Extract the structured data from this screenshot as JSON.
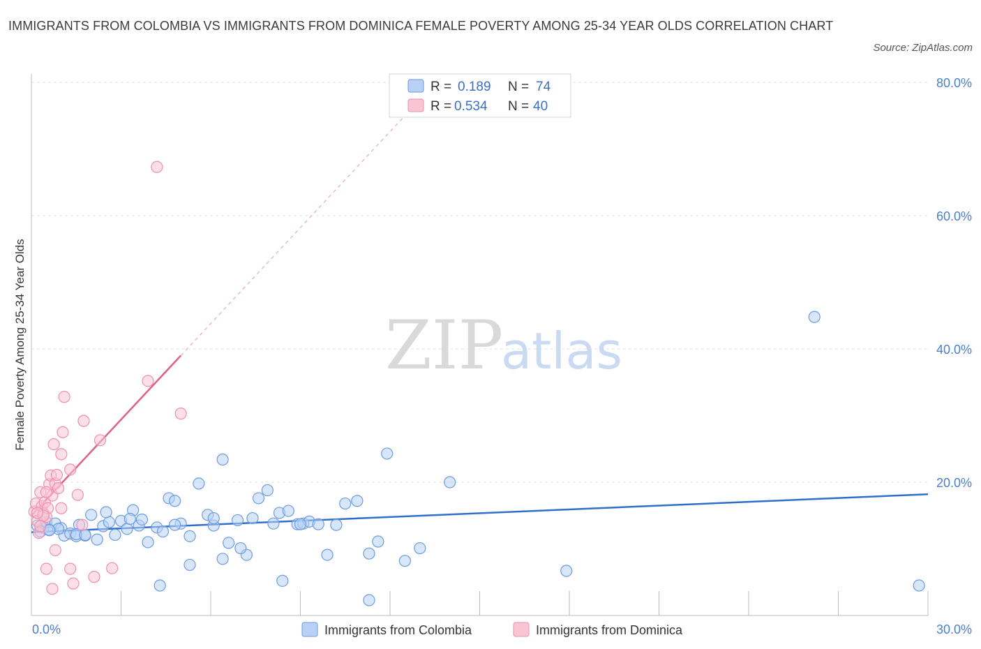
{
  "title": "IMMIGRANTS FROM COLOMBIA VS IMMIGRANTS FROM DOMINICA FEMALE POVERTY AMONG 25-34 YEAR OLDS CORRELATION CHART",
  "source": "Source: ZipAtlas.com",
  "watermark": {
    "zip": "ZIP",
    "atlas": "atlas"
  },
  "colors": {
    "colombia_fill": "#b8d1f5",
    "colombia_stroke": "#6b9be0",
    "colombia_line": "#2f6fcc",
    "dominica_fill": "#f9c4d4",
    "dominica_stroke": "#ee8fb0",
    "dominica_line": "#e0608c",
    "grid": "#e3e3e3",
    "tick": "#4a7fd0"
  },
  "legend": {
    "rows": [
      {
        "r_label": "R =",
        "r_value": "0.189",
        "n_label": "N =",
        "n_value": "74"
      },
      {
        "r_label": "R =",
        "r_value": "0.534",
        "n_label": "N =",
        "n_value": "40"
      }
    ]
  },
  "chart_data": {
    "type": "scatter",
    "xlabel": "",
    "ylabel": "Female Poverty Among 25-34 Year Olds",
    "xlim": [
      0,
      30
    ],
    "ylim": [
      0,
      80
    ],
    "x_tick_labels": [
      "0.0%",
      "30.0%"
    ],
    "y_ticks": [
      20,
      40,
      60,
      80
    ],
    "y_tick_labels": [
      "20.0%",
      "40.0%",
      "60.0%",
      "80.0%"
    ],
    "grid": true,
    "series": [
      {
        "name": "Immigrants from Colombia",
        "trend": {
          "x0": 0,
          "y0": 12.5,
          "x1": 30,
          "y1": 18.2,
          "style": "solid"
        },
        "points": [
          [
            0.2,
            13.5
          ],
          [
            0.3,
            12.6
          ],
          [
            0.4,
            13.2
          ],
          [
            0.5,
            14.0
          ],
          [
            0.6,
            12.9
          ],
          [
            0.8,
            13.8
          ],
          [
            1.0,
            13.1
          ],
          [
            1.1,
            12.0
          ],
          [
            1.3,
            12.3
          ],
          [
            1.5,
            11.9
          ],
          [
            1.6,
            13.6
          ],
          [
            1.8,
            12.0
          ],
          [
            2.0,
            15.1
          ],
          [
            2.2,
            11.4
          ],
          [
            2.4,
            13.4
          ],
          [
            2.6,
            14.0
          ],
          [
            2.8,
            12.1
          ],
          [
            3.0,
            14.2
          ],
          [
            3.2,
            13.0
          ],
          [
            3.4,
            15.8
          ],
          [
            3.6,
            13.5
          ],
          [
            3.7,
            14.4
          ],
          [
            3.9,
            11.0
          ],
          [
            4.2,
            13.2
          ],
          [
            4.4,
            12.6
          ],
          [
            4.6,
            17.6
          ],
          [
            4.8,
            17.2
          ],
          [
            5.0,
            13.8
          ],
          [
            5.3,
            11.9
          ],
          [
            5.6,
            19.8
          ],
          [
            5.9,
            15.1
          ],
          [
            6.1,
            13.5
          ],
          [
            6.4,
            23.4
          ],
          [
            6.6,
            10.9
          ],
          [
            6.9,
            14.3
          ],
          [
            7.2,
            9.1
          ],
          [
            7.4,
            14.6
          ],
          [
            7.6,
            17.6
          ],
          [
            7.9,
            18.8
          ],
          [
            8.1,
            13.8
          ],
          [
            8.3,
            15.4
          ],
          [
            8.6,
            15.7
          ],
          [
            8.9,
            13.7
          ],
          [
            9.1,
            13.8
          ],
          [
            9.3,
            14.1
          ],
          [
            9.6,
            13.7
          ],
          [
            9.9,
            9.1
          ],
          [
            10.2,
            13.6
          ],
          [
            10.5,
            16.8
          ],
          [
            10.9,
            17.2
          ],
          [
            11.3,
            9.3
          ],
          [
            11.6,
            11.1
          ],
          [
            11.9,
            24.3
          ],
          [
            12.5,
            8.2
          ],
          [
            13.0,
            10.1
          ],
          [
            14.0,
            20.0
          ],
          [
            17.9,
            6.7
          ],
          [
            26.2,
            44.8
          ],
          [
            29.7,
            4.5
          ],
          [
            4.3,
            4.5
          ],
          [
            5.3,
            7.6
          ],
          [
            6.4,
            8.5
          ],
          [
            8.4,
            5.2
          ],
          [
            11.3,
            2.3
          ],
          [
            1.5,
            12.2
          ],
          [
            2.5,
            15.5
          ],
          [
            0.9,
            13.0
          ],
          [
            3.3,
            14.5
          ],
          [
            0.6,
            12.8
          ],
          [
            1.8,
            12.1
          ],
          [
            4.8,
            13.6
          ],
          [
            7.0,
            10.1
          ],
          [
            6.1,
            14.6
          ],
          [
            9.0,
            13.7
          ]
        ]
      },
      {
        "name": "Immigrants from Dominica",
        "trend": {
          "x0": 0,
          "y0": 15.0,
          "x1": 5.0,
          "y1": 39.0,
          "dash_to_x": 12.5,
          "dash_to_y": 75.0,
          "style": "solid"
        },
        "points": [
          [
            0.1,
            15.6
          ],
          [
            0.15,
            16.8
          ],
          [
            0.2,
            14.2
          ],
          [
            0.25,
            12.4
          ],
          [
            0.3,
            18.5
          ],
          [
            0.35,
            16.4
          ],
          [
            0.4,
            15.3
          ],
          [
            0.45,
            17.0
          ],
          [
            0.5,
            14.8
          ],
          [
            0.55,
            16.1
          ],
          [
            0.6,
            19.7
          ],
          [
            0.65,
            21.0
          ],
          [
            0.7,
            18.0
          ],
          [
            0.75,
            25.7
          ],
          [
            0.8,
            19.8
          ],
          [
            0.85,
            21.1
          ],
          [
            0.9,
            19.1
          ],
          [
            1.0,
            24.2
          ],
          [
            1.05,
            27.5
          ],
          [
            1.1,
            32.8
          ],
          [
            1.3,
            21.9
          ],
          [
            1.55,
            18.1
          ],
          [
            1.75,
            29.2
          ],
          [
            2.3,
            26.3
          ],
          [
            3.9,
            35.2
          ],
          [
            4.2,
            67.3
          ],
          [
            5.0,
            30.3
          ],
          [
            0.5,
            7.0
          ],
          [
            0.7,
            4.0
          ],
          [
            0.8,
            9.8
          ],
          [
            1.3,
            7.0
          ],
          [
            1.4,
            4.8
          ],
          [
            2.1,
            5.8
          ],
          [
            2.7,
            7.1
          ],
          [
            1.7,
            13.6
          ],
          [
            1.0,
            16.1
          ],
          [
            0.4,
            15.0
          ],
          [
            0.5,
            18.5
          ],
          [
            0.2,
            15.4
          ],
          [
            0.3,
            13.4
          ]
        ]
      }
    ]
  }
}
